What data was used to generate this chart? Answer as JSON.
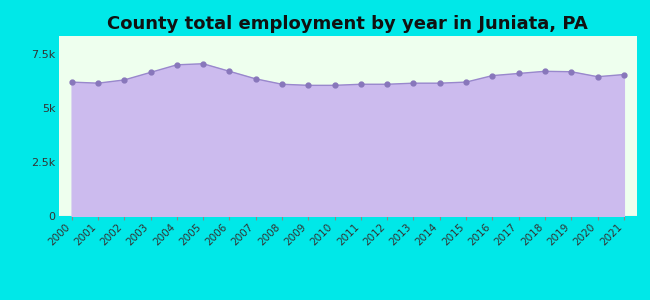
{
  "title": "County total employment by year in Juniata, PA",
  "title_fontsize": 13,
  "title_fontweight": "bold",
  "background_color": "#00e8e8",
  "plot_bg_color": "#eeffee",
  "fill_color": "#ccbbee",
  "line_color": "#9988cc",
  "marker_color": "#8877bb",
  "years": [
    2000,
    2001,
    2002,
    2003,
    2004,
    2005,
    2006,
    2007,
    2008,
    2009,
    2010,
    2011,
    2012,
    2013,
    2014,
    2015,
    2016,
    2017,
    2018,
    2019,
    2020,
    2021
  ],
  "values": [
    6200,
    6150,
    6300,
    6650,
    7000,
    7050,
    6700,
    6350,
    6100,
    6050,
    6050,
    6100,
    6100,
    6150,
    6150,
    6200,
    6500,
    6600,
    6700,
    6680,
    6450,
    6550
  ],
  "ylim": [
    0,
    8334
  ],
  "yticks": [
    0,
    2500,
    5000,
    7500
  ],
  "ytick_labels": [
    "0",
    "2.5k",
    "5k",
    "7.5k"
  ],
  "ylabel_fontsize": 8,
  "xtick_fontsize": 7.5,
  "marker_size": 3.5
}
